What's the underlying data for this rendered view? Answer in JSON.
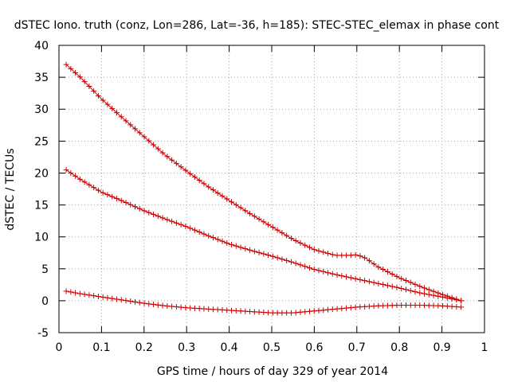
{
  "chart_data": {
    "type": "scatter",
    "title": "dSTEC Iono. truth (conz, Lon=286, Lat=-36, h=185): STEC-STEC_elemax in phase cont",
    "xlabel": "GPS time / hours of day 329 of year 2014",
    "ylabel": "dSTEC  / TECUs",
    "xlim": [
      0,
      1
    ],
    "ylim": [
      -5,
      40
    ],
    "x_ticks": [
      "0",
      "0.1",
      "0.2",
      "0.3",
      "0.4",
      "0.5",
      "0.6",
      "0.7",
      "0.8",
      "0.9",
      "1"
    ],
    "y_ticks": [
      "-5",
      "0",
      "5",
      "10",
      "15",
      "20",
      "25",
      "30",
      "35",
      "40"
    ],
    "grid": true,
    "legend": "none",
    "marker": "plus",
    "color": "#cc0000",
    "series": [
      {
        "x": [
          0.017,
          0.05,
          0.1,
          0.15,
          0.2,
          0.25,
          0.3,
          0.35,
          0.4,
          0.45,
          0.5,
          0.55,
          0.6,
          0.65,
          0.68,
          0.7,
          0.72,
          0.75,
          0.8,
          0.85,
          0.9,
          0.945
        ],
        "y": [
          37.0,
          35.0,
          31.6,
          28.6,
          25.7,
          22.8,
          20.3,
          17.9,
          15.7,
          13.6,
          11.6,
          9.6,
          8.0,
          7.1,
          7.1,
          7.2,
          6.7,
          5.3,
          3.6,
          2.2,
          1.0,
          0.0
        ]
      },
      {
        "x": [
          0.017,
          0.05,
          0.1,
          0.15,
          0.2,
          0.25,
          0.3,
          0.35,
          0.4,
          0.45,
          0.5,
          0.55,
          0.6,
          0.65,
          0.7,
          0.75,
          0.8,
          0.85,
          0.9,
          0.945
        ],
        "y": [
          20.5,
          19.0,
          17.0,
          15.6,
          14.1,
          12.8,
          11.6,
          10.2,
          8.9,
          7.9,
          7.0,
          6.0,
          4.9,
          4.1,
          3.4,
          2.7,
          2.0,
          1.2,
          0.6,
          0.0
        ]
      },
      {
        "x": [
          0.017,
          0.05,
          0.1,
          0.15,
          0.2,
          0.25,
          0.3,
          0.35,
          0.4,
          0.45,
          0.5,
          0.55,
          0.6,
          0.65,
          0.7,
          0.75,
          0.8,
          0.85,
          0.9,
          0.945
        ],
        "y": [
          1.5,
          1.1,
          0.6,
          0.1,
          -0.4,
          -0.8,
          -1.1,
          -1.3,
          -1.5,
          -1.7,
          -1.9,
          -1.9,
          -1.6,
          -1.3,
          -1.0,
          -0.8,
          -0.7,
          -0.7,
          -0.8,
          -1.0
        ]
      }
    ]
  }
}
